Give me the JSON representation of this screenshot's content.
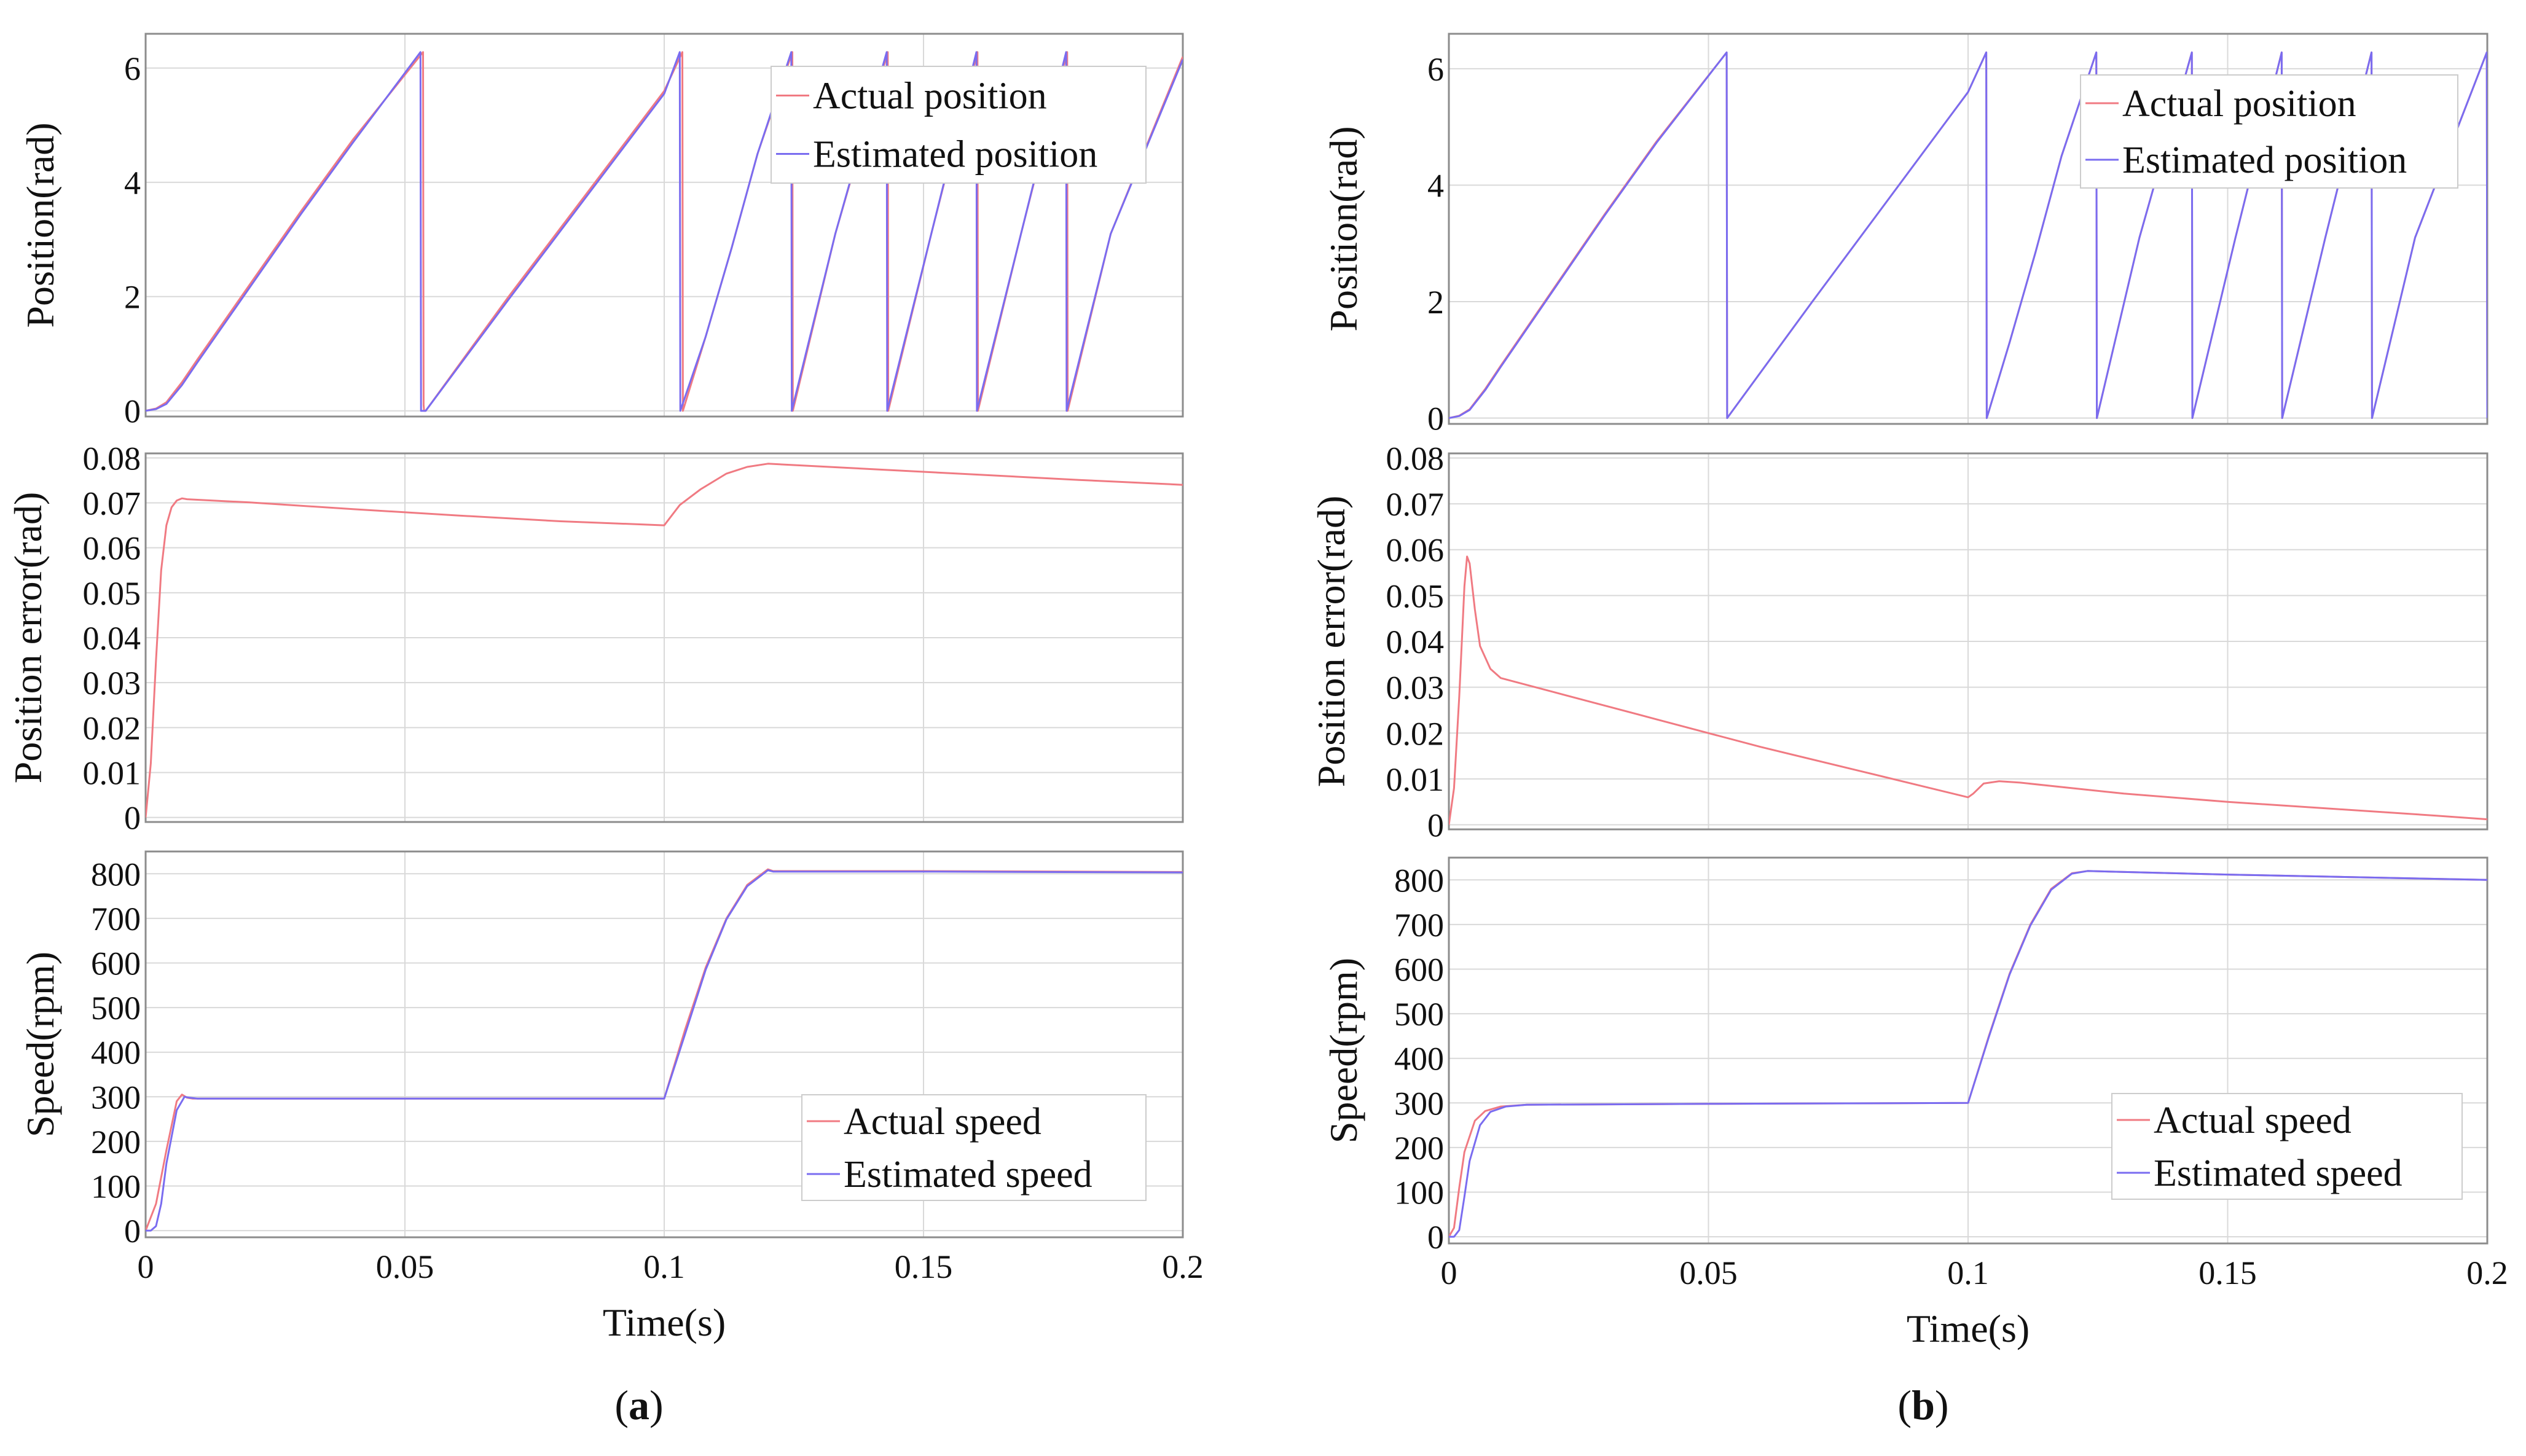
{
  "figure": {
    "panel_captions": [
      {
        "open": "(",
        "letter": "a",
        "close": ")"
      },
      {
        "open": "(",
        "letter": "b",
        "close": ")"
      }
    ]
  },
  "colors": {
    "actual": "#f07a82",
    "estimated": "#7a6cf0",
    "grid": "#d9d9d9",
    "frame": "#8c8c8c",
    "background": "#ffffff"
  },
  "chart_data": [
    {
      "id": "a-position",
      "type": "line",
      "ylabel": "Position(rad)",
      "xlabel": "",
      "xlim": [
        0,
        0.2
      ],
      "ylim": [
        -0.1,
        6.6
      ],
      "xticks": [
        0,
        0.05,
        0.1,
        0.15,
        0.2
      ],
      "xtick_labels": [],
      "yticks": [
        0,
        2,
        4,
        6
      ],
      "ytick_labels": [
        "0",
        "2",
        "4",
        "6"
      ],
      "legend": {
        "position": "top-right"
      },
      "series": [
        {
          "name": "Actual position",
          "color_key": "actual",
          "width": 3,
          "x": [
            0,
            0.002,
            0.004,
            0.007,
            0.01,
            0.02,
            0.03,
            0.04,
            0.0535,
            0.0536,
            0.0537,
            0.054,
            0.07,
            0.085,
            0.1,
            0.1035,
            0.1036,
            0.108,
            0.113,
            0.118,
            0.1247,
            0.1248,
            0.133,
            0.1431,
            0.1432,
            0.1515,
            0.1604,
            0.1605,
            0.1688,
            0.1777,
            0.1778,
            0.1861,
            0.2
          ],
          "y": [
            0,
            0.04,
            0.15,
            0.5,
            0.9,
            2.2,
            3.5,
            4.75,
            6.28,
            0.1,
            0.0,
            0.0,
            2.0,
            3.8,
            5.6,
            6.28,
            0,
            1.3,
            2.85,
            4.5,
            6.28,
            0,
            3.1,
            6.28,
            0,
            3.1,
            6.28,
            0,
            3.1,
            6.28,
            0,
            3.1,
            6.2
          ]
        },
        {
          "name": "Estimated position",
          "color_key": "estimated",
          "width": 3,
          "x": [
            0,
            0.002,
            0.004,
            0.007,
            0.01,
            0.02,
            0.03,
            0.04,
            0.053,
            0.0531,
            0.0535,
            0.054,
            0.07,
            0.085,
            0.1,
            0.103,
            0.1031,
            0.108,
            0.113,
            0.118,
            0.1245,
            0.1246,
            0.133,
            0.1429,
            0.143,
            0.1515,
            0.1602,
            0.1603,
            0.1688,
            0.1775,
            0.1776,
            0.1861,
            0.2
          ],
          "y": [
            0,
            0.03,
            0.12,
            0.45,
            0.85,
            2.15,
            3.45,
            4.7,
            6.28,
            0.0,
            0.0,
            0.0,
            1.95,
            3.75,
            5.55,
            6.28,
            0,
            1.3,
            2.85,
            4.5,
            6.28,
            0,
            3.1,
            6.28,
            0,
            3.1,
            6.28,
            0,
            3.1,
            6.28,
            0,
            3.1,
            6.15
          ]
        }
      ]
    },
    {
      "id": "a-error",
      "type": "line",
      "ylabel": "Position error(rad)",
      "xlabel": "",
      "xlim": [
        0,
        0.2
      ],
      "ylim": [
        -0.001,
        0.081
      ],
      "xticks": [
        0,
        0.05,
        0.1,
        0.15,
        0.2
      ],
      "xtick_labels": [],
      "yticks": [
        0,
        0.01,
        0.02,
        0.03,
        0.04,
        0.05,
        0.06,
        0.07,
        0.08
      ],
      "ytick_labels": [
        "0",
        "0.01",
        "0.02",
        "0.03",
        "0.04",
        "0.05",
        "0.06",
        "0.07",
        "0.08"
      ],
      "series": [
        {
          "name": "Position error",
          "color_key": "actual",
          "width": 3,
          "x": [
            0,
            0.001,
            0.002,
            0.003,
            0.004,
            0.005,
            0.006,
            0.007,
            0.008,
            0.02,
            0.04,
            0.06,
            0.08,
            0.1,
            0.103,
            0.107,
            0.112,
            0.116,
            0.12,
            0.14,
            0.16,
            0.18,
            0.2
          ],
          "y": [
            0,
            0.012,
            0.035,
            0.055,
            0.065,
            0.069,
            0.0705,
            0.071,
            0.0708,
            0.0701,
            0.0686,
            0.0672,
            0.0659,
            0.065,
            0.0695,
            0.073,
            0.0765,
            0.078,
            0.0787,
            0.0775,
            0.0763,
            0.0751,
            0.074
          ]
        }
      ]
    },
    {
      "id": "a-speed",
      "type": "line",
      "ylabel": "Speed(rpm)",
      "xlabel": "Time(s)",
      "xlim": [
        0,
        0.2
      ],
      "ylim": [
        -15,
        850
      ],
      "xticks": [
        0,
        0.05,
        0.1,
        0.15,
        0.2
      ],
      "xtick_labels": [
        "0",
        "0.05",
        "0.1",
        "0.15",
        "0.2"
      ],
      "yticks": [
        0,
        100,
        200,
        300,
        400,
        500,
        600,
        700,
        800
      ],
      "ytick_labels": [
        "0",
        "100",
        "200",
        "300",
        "400",
        "500",
        "600",
        "700",
        "800"
      ],
      "legend": {
        "position": "bottom-right"
      },
      "series": [
        {
          "name": "Actual speed",
          "color_key": "actual",
          "width": 3,
          "x": [
            0,
            0.002,
            0.004,
            0.006,
            0.007,
            0.008,
            0.009,
            0.01,
            0.05,
            0.1,
            0.104,
            0.108,
            0.112,
            0.116,
            0.12,
            0.121,
            0.15,
            0.2
          ],
          "y": [
            0,
            60,
            180,
            290,
            305,
            298,
            296,
            296,
            296,
            296,
            450,
            590,
            700,
            775,
            810,
            806,
            806,
            804
          ]
        },
        {
          "name": "Estimated speed",
          "color_key": "estimated",
          "width": 3,
          "x": [
            0,
            0.001,
            0.002,
            0.003,
            0.004,
            0.006,
            0.0075,
            0.0085,
            0.01,
            0.05,
            0.1,
            0.104,
            0.108,
            0.112,
            0.116,
            0.12,
            0.121,
            0.15,
            0.2
          ],
          "y": [
            0,
            0,
            10,
            60,
            150,
            270,
            300,
            298,
            296,
            296,
            296,
            440,
            585,
            698,
            772,
            808,
            805,
            805,
            803
          ]
        }
      ]
    },
    {
      "id": "b-position",
      "type": "line",
      "ylabel": "Position(rad)",
      "xlabel": "",
      "xlim": [
        0,
        0.2
      ],
      "ylim": [
        -0.1,
        6.6
      ],
      "xticks": [
        0,
        0.05,
        0.1,
        0.15,
        0.2
      ],
      "xtick_labels": [],
      "yticks": [
        0,
        2,
        4,
        6
      ],
      "ytick_labels": [
        "0",
        "2",
        "4",
        "6"
      ],
      "legend": {
        "position": "top-right"
      },
      "series": [
        {
          "name": "Actual position",
          "color_key": "actual",
          "width": 3,
          "x": [
            0,
            0.002,
            0.004,
            0.007,
            0.01,
            0.02,
            0.03,
            0.04,
            0.0535,
            0.0536,
            0.07,
            0.085,
            0.1,
            0.1035,
            0.1036,
            0.108,
            0.113,
            0.118,
            0.1247,
            0.1248,
            0.133,
            0.1431,
            0.1432,
            0.1515,
            0.1604,
            0.1605,
            0.1688,
            0.1777,
            0.1778,
            0.1861,
            0.1999,
            0.2
          ],
          "y": [
            0,
            0.04,
            0.15,
            0.5,
            0.9,
            2.2,
            3.5,
            4.75,
            6.28,
            0,
            2.0,
            3.8,
            5.6,
            6.28,
            0,
            1.3,
            2.85,
            4.5,
            6.28,
            0,
            3.1,
            6.28,
            0,
            3.1,
            6.28,
            0,
            3.1,
            6.28,
            0,
            3.1,
            6.28,
            0
          ]
        },
        {
          "name": "Estimated position",
          "color_key": "estimated",
          "width": 3,
          "x": [
            0,
            0.002,
            0.004,
            0.007,
            0.01,
            0.02,
            0.03,
            0.04,
            0.0535,
            0.0536,
            0.07,
            0.085,
            0.1,
            0.1035,
            0.1036,
            0.108,
            0.113,
            0.118,
            0.1247,
            0.1248,
            0.133,
            0.1431,
            0.1432,
            0.1515,
            0.1604,
            0.1605,
            0.1688,
            0.1777,
            0.1778,
            0.1861,
            0.1999,
            0.2
          ],
          "y": [
            0,
            0.035,
            0.14,
            0.48,
            0.88,
            2.18,
            3.48,
            4.73,
            6.28,
            0,
            2.0,
            3.8,
            5.6,
            6.28,
            0,
            1.3,
            2.85,
            4.5,
            6.28,
            0,
            3.1,
            6.28,
            0,
            3.1,
            6.28,
            0,
            3.1,
            6.28,
            0,
            3.1,
            6.28,
            0
          ]
        }
      ]
    },
    {
      "id": "b-error",
      "type": "line",
      "ylabel": "Position error(rad)",
      "xlabel": "",
      "xlim": [
        0,
        0.2
      ],
      "ylim": [
        -0.001,
        0.081
      ],
      "xticks": [
        0,
        0.05,
        0.1,
        0.15,
        0.2
      ],
      "xtick_labels": [],
      "yticks": [
        0,
        0.01,
        0.02,
        0.03,
        0.04,
        0.05,
        0.06,
        0.07,
        0.08
      ],
      "ytick_labels": [
        "0",
        "0.01",
        "0.02",
        "0.03",
        "0.04",
        "0.05",
        "0.06",
        "0.07",
        "0.08"
      ],
      "series": [
        {
          "name": "Position error",
          "color_key": "actual",
          "width": 3,
          "x": [
            0,
            0.001,
            0.002,
            0.003,
            0.0035,
            0.004,
            0.005,
            0.006,
            0.008,
            0.01,
            0.02,
            0.04,
            0.06,
            0.08,
            0.1,
            0.101,
            0.103,
            0.106,
            0.11,
            0.13,
            0.15,
            0.17,
            0.19,
            0.2
          ],
          "y": [
            0,
            0.008,
            0.028,
            0.052,
            0.0585,
            0.057,
            0.047,
            0.039,
            0.034,
            0.032,
            0.029,
            0.023,
            0.017,
            0.0115,
            0.006,
            0.0068,
            0.009,
            0.0095,
            0.0092,
            0.0068,
            0.005,
            0.0035,
            0.002,
            0.0012
          ]
        }
      ]
    },
    {
      "id": "b-speed",
      "type": "line",
      "ylabel": "Speed(rpm)",
      "xlabel": "Time(s)",
      "xlim": [
        0,
        0.2
      ],
      "ylim": [
        -15,
        850
      ],
      "xticks": [
        0,
        0.05,
        0.1,
        0.15,
        0.2
      ],
      "xtick_labels": [
        "0",
        "0.05",
        "0.1",
        "0.15",
        "0.2"
      ],
      "yticks": [
        0,
        100,
        200,
        300,
        400,
        500,
        600,
        700,
        800
      ],
      "ytick_labels": [
        "0",
        "100",
        "200",
        "300",
        "400",
        "500",
        "600",
        "700",
        "800"
      ],
      "legend": {
        "position": "bottom-right"
      },
      "series": [
        {
          "name": "Actual speed",
          "color_key": "actual",
          "width": 3,
          "x": [
            0,
            0.001,
            0.002,
            0.003,
            0.005,
            0.007,
            0.01,
            0.015,
            0.05,
            0.1,
            0.104,
            0.108,
            0.112,
            0.116,
            0.12,
            0.123,
            0.15,
            0.2
          ],
          "y": [
            0,
            20,
            110,
            190,
            260,
            282,
            292,
            296,
            298,
            300,
            450,
            590,
            700,
            780,
            815,
            820,
            812,
            800
          ]
        },
        {
          "name": "Estimated speed",
          "color_key": "estimated",
          "width": 3,
          "x": [
            0,
            0.001,
            0.002,
            0.003,
            0.004,
            0.006,
            0.008,
            0.011,
            0.015,
            0.05,
            0.1,
            0.104,
            0.108,
            0.112,
            0.116,
            0.12,
            0.123,
            0.15,
            0.2
          ],
          "y": [
            0,
            0,
            15,
            90,
            170,
            250,
            280,
            292,
            296,
            298,
            300,
            448,
            588,
            698,
            778,
            814,
            820,
            812,
            800
          ]
        }
      ]
    }
  ]
}
